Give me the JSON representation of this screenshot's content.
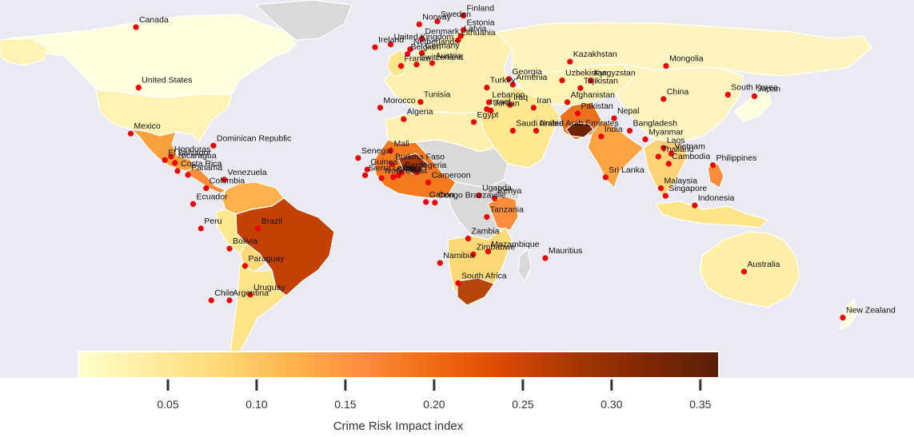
{
  "colors": {
    "ocean": "#eaeaf2",
    "no_data": "#d9d9d9",
    "border": "#ffffff",
    "marker": "#ee0000",
    "scale": [
      "#ffffcc",
      "#ffeda0",
      "#fed976",
      "#feb24c",
      "#fd8d3c",
      "#f16913",
      "#d94801",
      "#a63603",
      "#7f2704",
      "#5a1f06"
    ]
  },
  "colorbar": {
    "title": "Crime Risk Impact index",
    "min": 0.0,
    "max": 0.36,
    "ticks": [
      {
        "value": 0.05,
        "label": "0.05"
      },
      {
        "value": 0.1,
        "label": "0.10"
      },
      {
        "value": 0.15,
        "label": "0.15"
      },
      {
        "value": 0.2,
        "label": "0.20"
      },
      {
        "value": 0.25,
        "label": "0.25"
      },
      {
        "value": 0.3,
        "label": "0.30"
      },
      {
        "value": 0.35,
        "label": "0.35"
      }
    ]
  },
  "countries": [
    {
      "name": "Canada",
      "lon": -100,
      "lat": 60,
      "value": 0.03
    },
    {
      "name": "United States",
      "lon": -99,
      "lat": 39,
      "value": 0.06
    },
    {
      "name": "Mexico",
      "lon": -102,
      "lat": 23,
      "value": 0.24
    },
    {
      "name": "Honduras",
      "lon": -86.5,
      "lat": 15,
      "value": 0.2
    },
    {
      "name": "El Salvador",
      "lon": -88.9,
      "lat": 13.8,
      "value": 0.2
    },
    {
      "name": "Nicaragua",
      "lon": -85,
      "lat": 12.8,
      "value": 0.18
    },
    {
      "name": "Costa Rica",
      "lon": -84,
      "lat": 10,
      "value": 0.12
    },
    {
      "name": "Panama",
      "lon": -80,
      "lat": 8.6,
      "value": 0.12
    },
    {
      "name": "Dominican Republic",
      "lon": -70.2,
      "lat": 18.8,
      "value": 0.1
    },
    {
      "name": "Venezuela",
      "lon": -66,
      "lat": 7,
      "value": 0.2
    },
    {
      "name": "Colombia",
      "lon": -73,
      "lat": 4,
      "value": 0.22
    },
    {
      "name": "Ecuador",
      "lon": -78,
      "lat": -1.5,
      "value": 0.2
    },
    {
      "name": "Peru",
      "lon": -75,
      "lat": -10,
      "value": 0.1
    },
    {
      "name": "Brazil",
      "lon": -53,
      "lat": -10,
      "value": 0.28
    },
    {
      "name": "Bolivia",
      "lon": -64,
      "lat": -17,
      "value": 0.1
    },
    {
      "name": "Paraguay",
      "lon": -58,
      "lat": -23,
      "value": 0.22
    },
    {
      "name": "Uruguay",
      "lon": -56,
      "lat": -33,
      "value": 0.14
    },
    {
      "name": "Chile",
      "lon": -71,
      "lat": -35,
      "value": 0.1
    },
    {
      "name": "Argentina",
      "lon": -64,
      "lat": -35,
      "value": 0.14
    },
    {
      "name": "Norway",
      "lon": 9,
      "lat": 61,
      "value": 0.03
    },
    {
      "name": "Sweden",
      "lon": 16,
      "lat": 62,
      "value": 0.04
    },
    {
      "name": "Finland",
      "lon": 26,
      "lat": 64,
      "value": 0.03
    },
    {
      "name": "Denmark",
      "lon": 10,
      "lat": 56,
      "value": 0.04
    },
    {
      "name": "Estonia",
      "lon": 26,
      "lat": 59,
      "value": 0.05
    },
    {
      "name": "Latvia",
      "lon": 25,
      "lat": 57,
      "value": 0.06
    },
    {
      "name": "Lithuania",
      "lon": 24,
      "lat": 55.5,
      "value": 0.06
    },
    {
      "name": "United Kingdom",
      "lon": -2,
      "lat": 54,
      "value": 0.07
    },
    {
      "name": "Ireland",
      "lon": -8,
      "lat": 53,
      "value": 0.05
    },
    {
      "name": "Netherlands",
      "lon": 5.5,
      "lat": 52.3,
      "value": 0.06
    },
    {
      "name": "Belgium",
      "lon": 4.5,
      "lat": 50.6,
      "value": 0.07
    },
    {
      "name": "Germany",
      "lon": 10,
      "lat": 51,
      "value": 0.05
    },
    {
      "name": "Austria",
      "lon": 14,
      "lat": 47.5,
      "value": 0.05
    },
    {
      "name": "Switzerland",
      "lon": 8,
      "lat": 47,
      "value": 0.03
    },
    {
      "name": "France",
      "lon": 2,
      "lat": 46.5,
      "value": 0.08
    },
    {
      "name": "Turkey",
      "lon": 35,
      "lat": 39,
      "value": 0.1
    },
    {
      "name": "Georgia",
      "lon": 43.5,
      "lat": 42,
      "value": 0.06
    },
    {
      "name": "Armenia",
      "lon": 45,
      "lat": 40,
      "value": 0.07
    },
    {
      "name": "Tunisia",
      "lon": 9.5,
      "lat": 34,
      "value": 0.1
    },
    {
      "name": "Lebanon",
      "lon": 35.8,
      "lat": 33.9,
      "value": 0.12
    },
    {
      "name": "Israel",
      "lon": 35,
      "lat": 31.5,
      "value": 0.08
    },
    {
      "name": "Jordan",
      "lon": 36.5,
      "lat": 31,
      "value": 0.07
    },
    {
      "name": "Egypt",
      "lon": 30,
      "lat": 27,
      "value": 0.1
    },
    {
      "name": "Iraq",
      "lon": 44,
      "lat": 33,
      "value": 0.18
    },
    {
      "name": "Iran",
      "lon": 53,
      "lat": 32,
      "value": 0.1
    },
    {
      "name": "Saudi Arabia",
      "lon": 45,
      "lat": 24,
      "value": 0.05
    },
    {
      "name": "United Arab Emirates",
      "lon": 54,
      "lat": 24,
      "value": 0.04
    },
    {
      "name": "Morocco",
      "lon": -6,
      "lat": 32,
      "value": 0.1
    },
    {
      "name": "Algeria",
      "lon": 3,
      "lat": 28,
      "value": 0.12
    },
    {
      "name": "Mali",
      "lon": -2,
      "lat": 17,
      "value": 0.16
    },
    {
      "name": "Senegal",
      "lon": -14.5,
      "lat": 14.5,
      "value": 0.16
    },
    {
      "name": "Guinea",
      "lon": -11,
      "lat": 10.5,
      "value": 0.22
    },
    {
      "name": "Burkina Faso",
      "lon": -1.5,
      "lat": 12.3,
      "value": 0.3
    },
    {
      "name": "Benin",
      "lon": 2.3,
      "lat": 9.5,
      "value": 0.2
    },
    {
      "name": "Togo",
      "lon": 1,
      "lat": 8.5,
      "value": 0.22
    },
    {
      "name": "Sierra Leone",
      "lon": -11.8,
      "lat": 8.5,
      "value": 0.25
    },
    {
      "name": "Ivory Coast",
      "lon": -5.5,
      "lat": 7.5,
      "value": 0.22
    },
    {
      "name": "Ghana",
      "lon": -1,
      "lat": 7.9,
      "value": 0.25
    },
    {
      "name": "Nigeria",
      "lon": 8,
      "lat": 9.5,
      "value": 0.28
    },
    {
      "name": "Cameroon",
      "lon": 12.5,
      "lat": 6,
      "value": 0.25
    },
    {
      "name": "Gabon",
      "lon": 11.6,
      "lat": -0.8,
      "value": 0.2
    },
    {
      "name": "Congo Brazzaville",
      "lon": 15,
      "lat": -1,
      "value": 0.24
    },
    {
      "name": "Uganda",
      "lon": 32,
      "lat": 1.5,
      "value": 0.24
    },
    {
      "name": "Kenya",
      "lon": 38,
      "lat": 0.5,
      "value": 0.26
    },
    {
      "name": "Tanzania",
      "lon": 35,
      "lat": -6,
      "value": 0.2
    },
    {
      "name": "Zambia",
      "lon": 27.8,
      "lat": -13.5,
      "value": 0.2
    },
    {
      "name": "Mozambique",
      "lon": 35.5,
      "lat": -18,
      "value": 0.18
    },
    {
      "name": "Zimbabwe",
      "lon": 29.8,
      "lat": -19,
      "value": 0.15
    },
    {
      "name": "Namibia",
      "lon": 17,
      "lat": -22,
      "value": 0.24
    },
    {
      "name": "South Africa",
      "lon": 24,
      "lat": -29,
      "value": 0.3
    },
    {
      "name": "Mauritius",
      "lon": 57.5,
      "lat": -20.3,
      "value": 0.1
    },
    {
      "name": "Kazakhstan",
      "lon": 67,
      "lat": 48,
      "value": 0.05
    },
    {
      "name": "Uzbekistan",
      "lon": 64,
      "lat": 41.5,
      "value": 0.05
    },
    {
      "name": "Kyrgyzstan",
      "lon": 75,
      "lat": 41.5,
      "value": 0.06
    },
    {
      "name": "Tajikistan",
      "lon": 71,
      "lat": 38.8,
      "value": 0.06
    },
    {
      "name": "Afghanistan",
      "lon": 66,
      "lat": 33.9,
      "value": 0.36
    },
    {
      "name": "Pakistan",
      "lon": 70,
      "lat": 30,
      "value": 0.22
    },
    {
      "name": "India",
      "lon": 79,
      "lat": 22,
      "value": 0.18
    },
    {
      "name": "Nepal",
      "lon": 84,
      "lat": 28.3,
      "value": 0.12
    },
    {
      "name": "Bangladesh",
      "lon": 90,
      "lat": 24,
      "value": 0.2
    },
    {
      "name": "Myanmar",
      "lon": 96,
      "lat": 21,
      "value": 0.24
    },
    {
      "name": "Sri Lanka",
      "lon": 80.7,
      "lat": 7.8,
      "value": 0.1
    },
    {
      "name": "Thailand",
      "lon": 101,
      "lat": 15,
      "value": 0.12
    },
    {
      "name": "Laos",
      "lon": 103,
      "lat": 18,
      "value": 0.08
    },
    {
      "name": "Vietnam",
      "lon": 106,
      "lat": 16,
      "value": 0.06
    },
    {
      "name": "Cambodia",
      "lon": 105,
      "lat": 12.5,
      "value": 0.1
    },
    {
      "name": "Malaysia",
      "lon": 102,
      "lat": 4,
      "value": 0.1
    },
    {
      "name": "Singapore",
      "lon": 103.8,
      "lat": 1.35,
      "value": 0.03
    },
    {
      "name": "Philippines",
      "lon": 122,
      "lat": 12,
      "value": 0.22
    },
    {
      "name": "Indonesia",
      "lon": 115,
      "lat": -2,
      "value": 0.1
    },
    {
      "name": "Mongolia",
      "lon": 104,
      "lat": 46.5,
      "value": 0.05
    },
    {
      "name": "China",
      "lon": 103,
      "lat": 35,
      "value": 0.05
    },
    {
      "name": "Japan",
      "lon": 138,
      "lat": 36,
      "value": 0.03
    },
    {
      "name": "South Korea",
      "lon": 127.8,
      "lat": 36.5,
      "value": 0.04
    },
    {
      "name": "Australia",
      "lon": 134,
      "lat": -25,
      "value": 0.04
    },
    {
      "name": "New Zealand",
      "lon": 172,
      "lat": -41,
      "value": 0.03
    }
  ]
}
